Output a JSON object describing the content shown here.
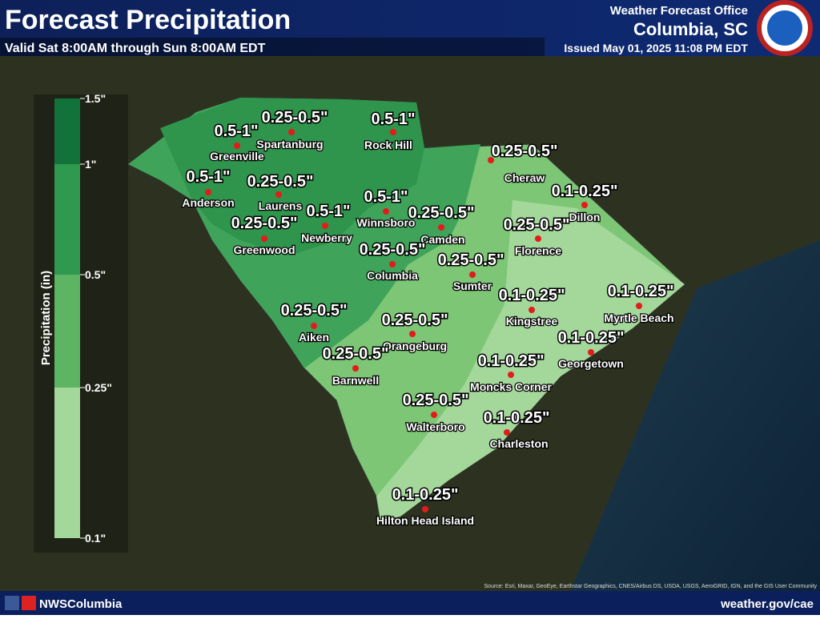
{
  "header": {
    "title": "Forecast Precipitation",
    "subtitle": "Valid Sat 8:00AM through Sun 8:00AM EDT",
    "office": "Weather Forecast Office",
    "location": "Columbia, SC",
    "issued": "Issued May 01, 2025 11:08 PM EDT"
  },
  "legend": {
    "title": "Precipitation (in)",
    "ticks": [
      "1.5\"",
      "1\"",
      "0.5\"",
      "0.25\"",
      "0.1\""
    ],
    "colors": [
      "#11733a",
      "#2f9a4f",
      "#5db564",
      "#a3d89a"
    ]
  },
  "cities": [
    {
      "name": "Greenville",
      "amount": "0.5-1\""
    },
    {
      "name": "Spartanburg",
      "amount": "0.25-0.5\""
    },
    {
      "name": "Rock Hill",
      "amount": "0.5-1\""
    },
    {
      "name": "Cheraw",
      "amount": "0.25-0.5\""
    },
    {
      "name": "Anderson",
      "amount": "0.5-1\""
    },
    {
      "name": "Laurens",
      "amount": "0.25-0.5\""
    },
    {
      "name": "Dillon",
      "amount": "0.1-0.25\""
    },
    {
      "name": "Winnsboro",
      "amount": "0.5-1\""
    },
    {
      "name": "Newberry",
      "amount": "0.5-1\""
    },
    {
      "name": "Greenwood",
      "amount": "0.25-0.5\""
    },
    {
      "name": "Camden",
      "amount": "0.25-0.5\""
    },
    {
      "name": "Florence",
      "amount": "0.25-0.5\""
    },
    {
      "name": "Columbia",
      "amount": "0.25-0.5\""
    },
    {
      "name": "Sumter",
      "amount": "0.25-0.5\""
    },
    {
      "name": "Kingstree",
      "amount": "0.1-0.25\""
    },
    {
      "name": "Myrtle Beach",
      "amount": "0.1-0.25\""
    },
    {
      "name": "Aiken",
      "amount": "0.25-0.5\""
    },
    {
      "name": "Orangeburg",
      "amount": "0.25-0.5\""
    },
    {
      "name": "Georgetown",
      "amount": "0.1-0.25\""
    },
    {
      "name": "Barnwell",
      "amount": "0.25-0.5\""
    },
    {
      "name": "Moncks Corner",
      "amount": "0.1-0.25\""
    },
    {
      "name": "Walterboro",
      "amount": "0.25-0.5\""
    },
    {
      "name": "Charleston",
      "amount": "0.1-0.25\""
    },
    {
      "name": "Hilton Head Island",
      "amount": "0.1-0.25\""
    }
  ],
  "source": "Source: Esri, Maxar, GeoEye, Earthstar Geographics, CNES/Airbus DS, USDA, USGS, AeroGRID, IGN, and the GIS User Community",
  "footer": {
    "social": "NWSColumbia",
    "website": "weather.gov/cae"
  }
}
